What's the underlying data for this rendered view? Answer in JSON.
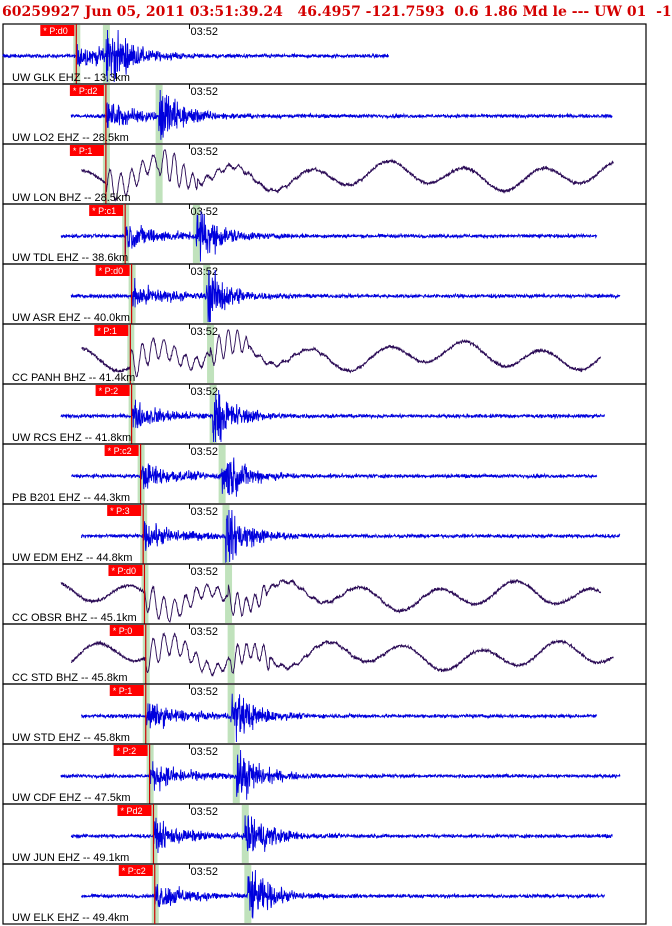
{
  "header": {
    "title": "60259927 Jun 05, 2011 03:51:39.24   46.4957 -121.7593  0.6 1.86 Md le --- UW 01  -1"
  },
  "chart_data": {
    "type": "line",
    "title": "60259927 Jun 05, 2011 03:51:39.24   46.4957 -121.7593  0.6 1.86 Md le --- UW 01  -1",
    "time_tick_label": "03:52",
    "colors": {
      "ehz_trace": "#0000dd",
      "bhz_trace": "#2a0a55",
      "pick_flag": "#ff0000",
      "pick_line": "#cc0000",
      "window_band": "#b5ddb0",
      "frame": "#000000"
    },
    "traces": [
      {
        "label": "UW GLK EHZ -- 13.3km",
        "pick": "P:d0",
        "type": "EHZ",
        "p_time": 51.2,
        "s_time": 53.5
      },
      {
        "label": "UW LO2 EHZ -- 28.5km",
        "pick": "P:d2",
        "type": "EHZ",
        "p_time": 53.5,
        "s_time": 57.6
      },
      {
        "label": "UW LON BHZ -- 28.5km",
        "pick": "P:1",
        "type": "BHZ",
        "p_time": 53.5,
        "s_time": 57.6
      },
      {
        "label": "UW TDL EHZ -- 38.6km",
        "pick": "P:c1",
        "type": "EHZ",
        "p_time": 55.0,
        "s_time": 60.5
      },
      {
        "label": "UW ASR EHZ -- 40.0km",
        "pick": "P:d0",
        "type": "EHZ",
        "p_time": 55.5,
        "s_time": 61.3
      },
      {
        "label": "CC PANH BHZ -- 41.4km",
        "pick": "P:1",
        "type": "BHZ",
        "p_time": 55.4,
        "s_time": 61.6
      },
      {
        "label": "UW RCS EHZ -- 41.8km",
        "pick": "P:2",
        "type": "EHZ",
        "p_time": 55.5,
        "s_time": 61.8
      },
      {
        "label": "PB B201 EHZ -- 44.3km",
        "pick": "P:c2",
        "type": "EHZ",
        "p_time": 56.2,
        "s_time": 62.5
      },
      {
        "label": "UW EDM EHZ -- 44.8km",
        "pick": "P:3",
        "type": "EHZ",
        "p_time": 56.4,
        "s_time": 62.8
      },
      {
        "label": "CC OBSR BHZ -- 45.1km",
        "pick": "P:d0",
        "type": "BHZ",
        "p_time": 56.5,
        "s_time": 63.0
      },
      {
        "label": "CC STD BHZ -- 45.8km",
        "pick": "P:0",
        "type": "BHZ",
        "p_time": 56.6,
        "s_time": 63.2
      },
      {
        "label": "UW STD EHZ -- 45.8km",
        "pick": "P:1",
        "type": "EHZ",
        "p_time": 56.6,
        "s_time": 63.2
      },
      {
        "label": "UW CDF EHZ -- 47.5km",
        "pick": "P:2",
        "type": "EHZ",
        "p_time": 56.9,
        "s_time": 63.6
      },
      {
        "label": "UW JUN EHZ -- 49.1km",
        "pick": "Pd2",
        "type": "EHZ",
        "p_time": 57.2,
        "s_time": 64.3
      },
      {
        "label": "UW ELK EHZ -- 49.4km",
        "pick": "P:c2",
        "type": "EHZ",
        "p_time": 57.3,
        "s_time": 64.5
      }
    ]
  }
}
